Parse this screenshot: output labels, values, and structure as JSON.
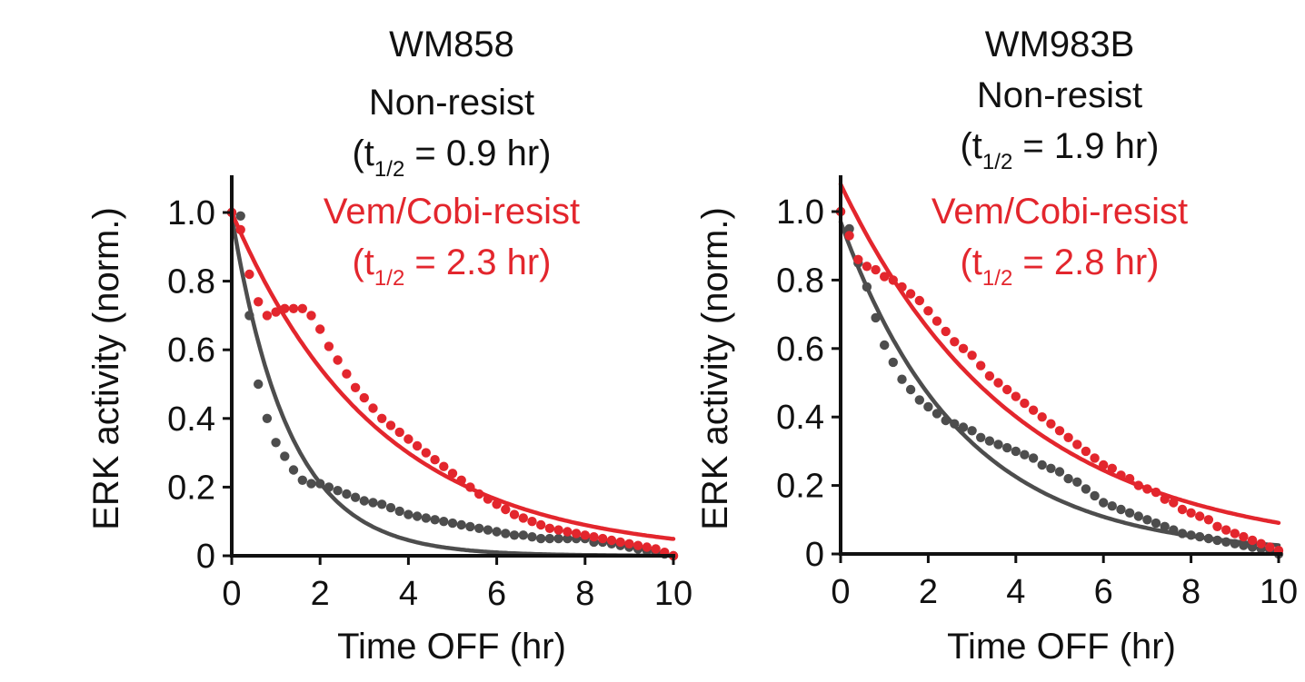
{
  "chart_data": [
    {
      "type": "scatter",
      "title": "WM858",
      "xlabel": "Time OFF (hr)",
      "ylabel": "ERK activity (norm.)",
      "xlim": [
        0,
        10
      ],
      "ylim": [
        0,
        1.1
      ],
      "xticks": [
        "0",
        "2",
        "4",
        "6",
        "8",
        "10"
      ],
      "yticks": [
        "0",
        "0.2",
        "0.4",
        "0.6",
        "0.8",
        "1.0"
      ],
      "legend": {
        "grey_label": "Non-resist",
        "grey_halflife": "(t1/2 = 0.9 hr)",
        "red_label": "Vem/Cobi-resist",
        "red_halflife": "(t1/2 = 2.3 hr)"
      },
      "series": [
        {
          "name": "Non-resist",
          "color": "#4d4d4d",
          "halflife_hr": 0.9,
          "fit_amplitude": 0.99,
          "x": [
            0,
            0.2,
            0.4,
            0.6,
            0.8,
            1.0,
            1.2,
            1.4,
            1.6,
            1.8,
            2.0,
            2.2,
            2.4,
            2.6,
            2.8,
            3.0,
            3.2,
            3.4,
            3.6,
            3.8,
            4.0,
            4.2,
            4.4,
            4.6,
            4.8,
            5.0,
            5.2,
            5.4,
            5.6,
            5.8,
            6.0,
            6.2,
            6.4,
            6.6,
            6.8,
            7.0,
            7.2,
            7.4,
            7.6,
            7.8,
            8.0,
            8.2,
            8.4,
            8.6,
            8.8,
            9.0,
            9.2,
            9.4,
            9.6,
            9.8,
            10.0
          ],
          "y": [
            1.0,
            0.99,
            0.7,
            0.5,
            0.4,
            0.33,
            0.29,
            0.25,
            0.22,
            0.21,
            0.21,
            0.2,
            0.19,
            0.18,
            0.17,
            0.16,
            0.155,
            0.15,
            0.14,
            0.13,
            0.12,
            0.115,
            0.11,
            0.105,
            0.1,
            0.095,
            0.09,
            0.085,
            0.08,
            0.075,
            0.07,
            0.065,
            0.06,
            0.06,
            0.055,
            0.05,
            0.05,
            0.05,
            0.05,
            0.05,
            0.05,
            0.04,
            0.04,
            0.035,
            0.03,
            0.025,
            0.02,
            0.015,
            0.01,
            0.005,
            0.0
          ]
        },
        {
          "name": "Vem/Cobi-resist",
          "color": "#e3262d",
          "halflife_hr": 2.3,
          "fit_amplitude": 1.0,
          "x": [
            0,
            0.2,
            0.4,
            0.6,
            0.8,
            1.0,
            1.2,
            1.4,
            1.6,
            1.8,
            2.0,
            2.2,
            2.4,
            2.6,
            2.8,
            3.0,
            3.2,
            3.4,
            3.6,
            3.8,
            4.0,
            4.2,
            4.4,
            4.6,
            4.8,
            5.0,
            5.2,
            5.4,
            5.6,
            5.8,
            6.0,
            6.2,
            6.4,
            6.6,
            6.8,
            7.0,
            7.2,
            7.4,
            7.6,
            7.8,
            8.0,
            8.2,
            8.4,
            8.6,
            8.8,
            9.0,
            9.2,
            9.4,
            9.6,
            9.8,
            10.0
          ],
          "y": [
            1.0,
            0.95,
            0.82,
            0.74,
            0.7,
            0.71,
            0.72,
            0.72,
            0.72,
            0.7,
            0.66,
            0.61,
            0.57,
            0.53,
            0.49,
            0.46,
            0.43,
            0.4,
            0.38,
            0.36,
            0.34,
            0.32,
            0.3,
            0.28,
            0.26,
            0.24,
            0.22,
            0.2,
            0.18,
            0.165,
            0.15,
            0.135,
            0.12,
            0.11,
            0.1,
            0.09,
            0.08,
            0.075,
            0.07,
            0.065,
            0.06,
            0.055,
            0.05,
            0.045,
            0.04,
            0.035,
            0.03,
            0.025,
            0.02,
            0.01,
            0.0
          ]
        }
      ]
    },
    {
      "type": "scatter",
      "title": "WM983B",
      "xlabel": "Time OFF (hr)",
      "ylabel": "ERK activity (norm.)",
      "xlim": [
        0,
        10
      ],
      "ylim": [
        0,
        1.1
      ],
      "xticks": [
        "0",
        "2",
        "4",
        "6",
        "8",
        "10"
      ],
      "yticks": [
        "0",
        "0.2",
        "0.4",
        "0.6",
        "0.8",
        "1.0"
      ],
      "legend": {
        "grey_label": "Non-resist",
        "grey_halflife": "(t1/2 = 1.9 hr)",
        "red_label": "Vem/Cobi-resist",
        "red_halflife": "(t1/2 = 2.8 hr)"
      },
      "series": [
        {
          "name": "Non-resist",
          "color": "#4d4d4d",
          "halflife_hr": 1.9,
          "fit_amplitude": 0.97,
          "x": [
            0,
            0.2,
            0.4,
            0.6,
            0.8,
            1.0,
            1.2,
            1.4,
            1.6,
            1.8,
            2.0,
            2.2,
            2.4,
            2.6,
            2.8,
            3.0,
            3.2,
            3.4,
            3.6,
            3.8,
            4.0,
            4.2,
            4.4,
            4.6,
            4.8,
            5.0,
            5.2,
            5.4,
            5.6,
            5.8,
            6.0,
            6.2,
            6.4,
            6.6,
            6.8,
            7.0,
            7.2,
            7.4,
            7.6,
            7.8,
            8.0,
            8.2,
            8.4,
            8.6,
            8.8,
            9.0,
            9.2,
            9.4,
            9.6,
            9.8,
            10.0
          ],
          "y": [
            1.0,
            0.95,
            0.85,
            0.78,
            0.69,
            0.61,
            0.56,
            0.51,
            0.48,
            0.45,
            0.43,
            0.41,
            0.39,
            0.38,
            0.37,
            0.36,
            0.34,
            0.33,
            0.32,
            0.31,
            0.3,
            0.29,
            0.28,
            0.26,
            0.25,
            0.24,
            0.22,
            0.21,
            0.19,
            0.17,
            0.15,
            0.14,
            0.13,
            0.12,
            0.11,
            0.1,
            0.09,
            0.08,
            0.07,
            0.06,
            0.055,
            0.05,
            0.045,
            0.04,
            0.035,
            0.03,
            0.025,
            0.02,
            0.015,
            0.01,
            0.0
          ]
        },
        {
          "name": "Vem/Cobi-resist",
          "color": "#e3262d",
          "halflife_hr": 2.8,
          "fit_amplitude": 1.08,
          "x": [
            0,
            0.2,
            0.4,
            0.6,
            0.8,
            1.0,
            1.2,
            1.4,
            1.6,
            1.8,
            2.0,
            2.2,
            2.4,
            2.6,
            2.8,
            3.0,
            3.2,
            3.4,
            3.6,
            3.8,
            4.0,
            4.2,
            4.4,
            4.6,
            4.8,
            5.0,
            5.2,
            5.4,
            5.6,
            5.8,
            6.0,
            6.2,
            6.4,
            6.6,
            6.8,
            7.0,
            7.2,
            7.4,
            7.6,
            7.8,
            8.0,
            8.2,
            8.4,
            8.6,
            8.8,
            9.0,
            9.2,
            9.4,
            9.6,
            9.8,
            10.0
          ],
          "y": [
            1.0,
            0.93,
            0.86,
            0.84,
            0.83,
            0.81,
            0.8,
            0.78,
            0.76,
            0.74,
            0.71,
            0.68,
            0.65,
            0.62,
            0.6,
            0.58,
            0.55,
            0.52,
            0.5,
            0.48,
            0.46,
            0.44,
            0.42,
            0.4,
            0.38,
            0.36,
            0.34,
            0.32,
            0.3,
            0.28,
            0.26,
            0.25,
            0.23,
            0.22,
            0.2,
            0.19,
            0.18,
            0.16,
            0.15,
            0.13,
            0.12,
            0.11,
            0.1,
            0.08,
            0.07,
            0.06,
            0.05,
            0.04,
            0.03,
            0.02,
            0.01
          ]
        }
      ]
    }
  ]
}
